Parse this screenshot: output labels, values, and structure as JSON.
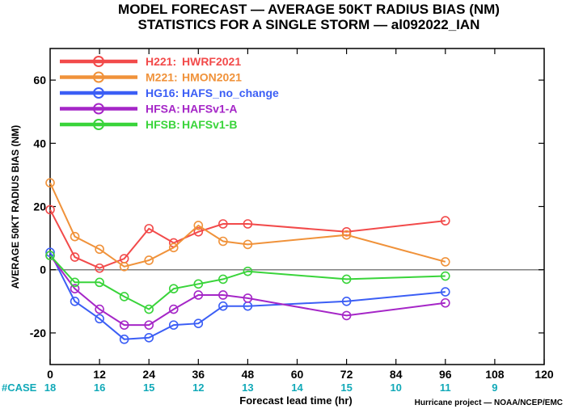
{
  "chart_data": {
    "type": "line",
    "title": "MODEL FORECAST — AVERAGE 50KT RADIUS BIAS (NM)",
    "subtitle": "STATISTICS FOR A SINGLE STORM — al092022_IAN",
    "xlabel": "Forecast lead time (hr)",
    "ylabel": "AVERAGE 50KT RADIUS BIAS (NM)",
    "xlim": [
      0,
      120
    ],
    "ylim": [
      -30,
      70
    ],
    "xticks": [
      0,
      12,
      24,
      36,
      48,
      60,
      72,
      84,
      96,
      108,
      120
    ],
    "yticks": [
      -20,
      0,
      20,
      40,
      60
    ],
    "zero_line": true,
    "legend_position": "top-left",
    "case_label": "#CASE",
    "cases": [
      {
        "x": 0,
        "n": "18"
      },
      {
        "x": 12,
        "n": "16"
      },
      {
        "x": 24,
        "n": "15"
      },
      {
        "x": 36,
        "n": "12"
      },
      {
        "x": 48,
        "n": "13"
      },
      {
        "x": 60,
        "n": "14"
      },
      {
        "x": 72,
        "n": "15"
      },
      {
        "x": 84,
        "n": "10"
      },
      {
        "x": 96,
        "n": "11"
      },
      {
        "x": 108,
        "n": "9"
      }
    ],
    "credit": "Hurricane project — NOAA/NCEP/EMC",
    "series": [
      {
        "code": "H221:",
        "name": "HWRF2021",
        "color": "#f24a4a",
        "x": [
          0,
          6,
          12,
          18,
          24,
          30,
          36,
          42,
          48,
          72,
          96
        ],
        "values": [
          19,
          4,
          0.5,
          3.5,
          13,
          8.5,
          12,
          14.5,
          14.5,
          12,
          15.5
        ]
      },
      {
        "code": "M221:",
        "name": "HMON2021",
        "color": "#f0923a",
        "x": [
          0,
          6,
          12,
          18,
          24,
          30,
          36,
          42,
          48,
          72,
          96
        ],
        "values": [
          27.5,
          10.5,
          6.5,
          1,
          3,
          7,
          14,
          9,
          8,
          11,
          2.5
        ]
      },
      {
        "code": "HG16:",
        "name": "HAFS_no_change",
        "color": "#3b5ef5",
        "x": [
          0,
          6,
          12,
          18,
          24,
          30,
          36,
          42,
          48,
          72,
          96
        ],
        "values": [
          5.5,
          -10,
          -15.5,
          -22,
          -21.5,
          -17.5,
          -17,
          -11.5,
          -11.5,
          -10,
          -7
        ]
      },
      {
        "code": "HFSA:",
        "name": "HAFSv1-A",
        "color": "#a526c7",
        "x": [
          0,
          6,
          12,
          18,
          24,
          30,
          36,
          42,
          48,
          72,
          96
        ],
        "values": [
          4.5,
          -6,
          -12.5,
          -17.5,
          -17.5,
          -12.5,
          -8,
          -8,
          -9,
          -14.5,
          -10.5
        ]
      },
      {
        "code": "HFSB:",
        "name": "HAFSv1-B",
        "color": "#39d43a",
        "x": [
          0,
          6,
          12,
          18,
          24,
          30,
          36,
          42,
          48,
          72,
          96
        ],
        "values": [
          4.5,
          -4,
          -4,
          -8.5,
          -12.5,
          -6,
          -4.5,
          -3,
          -0.5,
          -3,
          -2
        ]
      }
    ]
  }
}
